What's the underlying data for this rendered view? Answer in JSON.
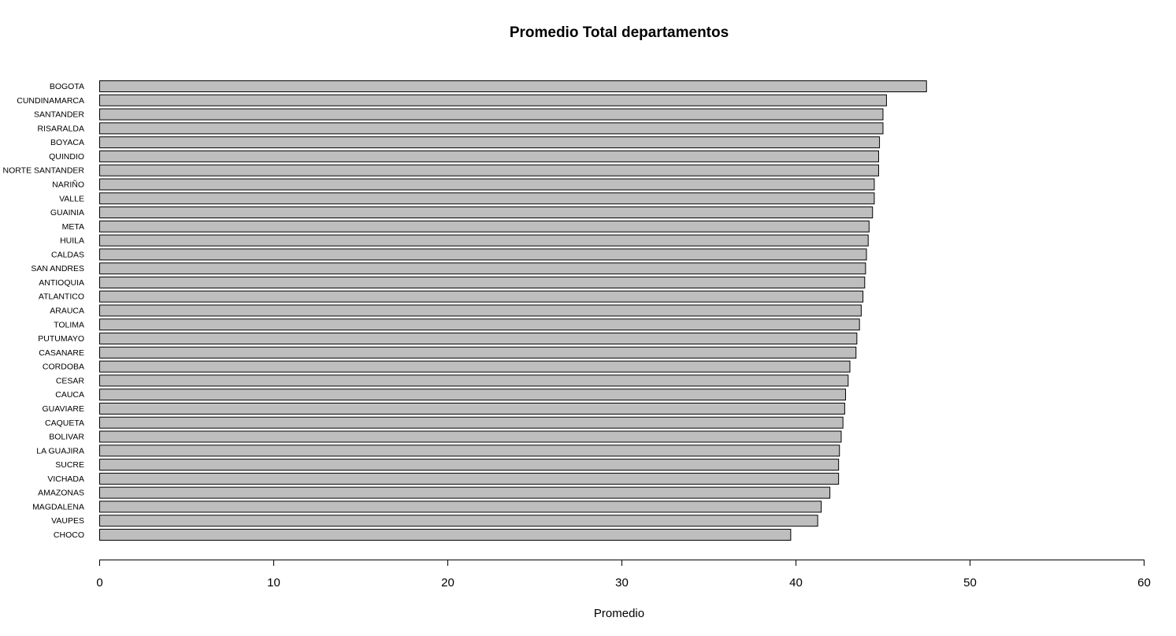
{
  "chart_data": {
    "type": "bar",
    "orientation": "horizontal",
    "title": "Promedio Total departamentos",
    "xlabel": "Promedio",
    "ylabel": "",
    "xlim": [
      0,
      60
    ],
    "xticks": [
      0,
      10,
      20,
      30,
      40,
      50,
      60
    ],
    "bar_color": "#bebebe",
    "grid": false,
    "categories": [
      "BOGOTA",
      "CUNDINAMARCA",
      "SANTANDER",
      "RISARALDA",
      "BOYACA",
      "QUINDIO",
      "NORTE SANTANDER",
      "NARIÑO",
      "VALLE",
      "GUAINIA",
      "META",
      "HUILA",
      "CALDAS",
      "SAN ANDRES",
      "ANTIOQUIA",
      "ATLANTICO",
      "ARAUCA",
      "TOLIMA",
      "PUTUMAYO",
      "CASANARE",
      "CORDOBA",
      "CESAR",
      "CAUCA",
      "GUAVIARE",
      "CAQUETA",
      "BOLIVAR",
      "LA GUAJIRA",
      "SUCRE",
      "VICHADA",
      "AMAZONAS",
      "MAGDALENA",
      "VAUPES",
      "CHOCO"
    ],
    "values": [
      47.5,
      45.2,
      45.0,
      45.0,
      44.8,
      44.75,
      44.75,
      44.5,
      44.5,
      44.4,
      44.2,
      44.15,
      44.05,
      44.0,
      43.95,
      43.85,
      43.75,
      43.65,
      43.5,
      43.45,
      43.1,
      43.0,
      42.85,
      42.8,
      42.7,
      42.6,
      42.5,
      42.45,
      42.45,
      41.95,
      41.45,
      41.25,
      39.7
    ]
  }
}
